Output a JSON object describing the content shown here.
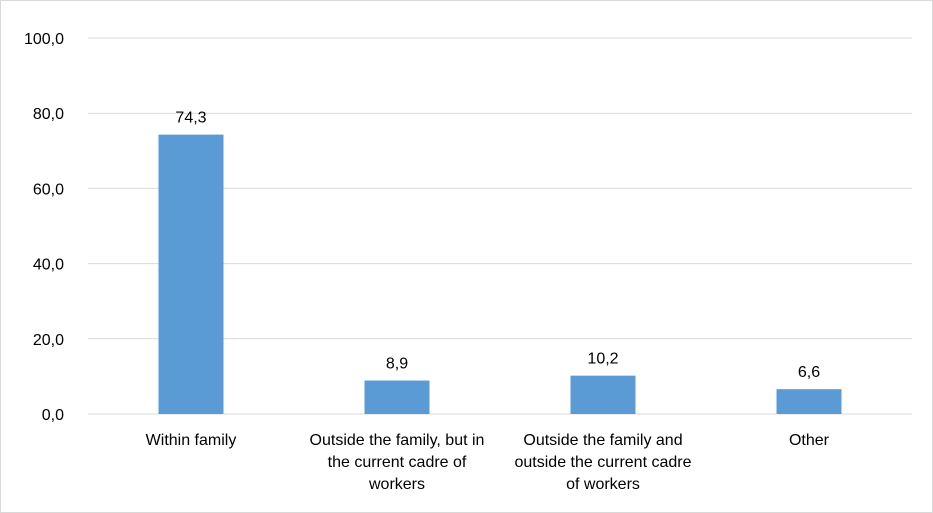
{
  "chart_data": {
    "type": "bar",
    "categories": [
      "Within family",
      "Outside the family, but in the current cadre of workers",
      "Outside the family and outside the current cadre of workers",
      "Other"
    ],
    "category_label_lines": [
      [
        "Within family"
      ],
      [
        "Outside the family, but in",
        "the current cadre of",
        "workers"
      ],
      [
        "Outside the family and",
        "outside the current cadre",
        "of workers"
      ],
      [
        "Other"
      ]
    ],
    "values": [
      74.3,
      8.9,
      10.2,
      6.6
    ],
    "data_labels": [
      "74,3",
      "8,9",
      "10,2",
      "6,6"
    ],
    "yticks": [
      0,
      20,
      40,
      60,
      80,
      100
    ],
    "ytick_labels": [
      "0,0",
      "20,0",
      "40,0",
      "60,0",
      "80,0",
      "100,0"
    ],
    "ylim": [
      0,
      100
    ],
    "grid": true,
    "legend": "none",
    "bar_color": "#5b9bd5",
    "grid_color": "#d9d9d9",
    "title": "",
    "xlabel": "",
    "ylabel": ""
  }
}
